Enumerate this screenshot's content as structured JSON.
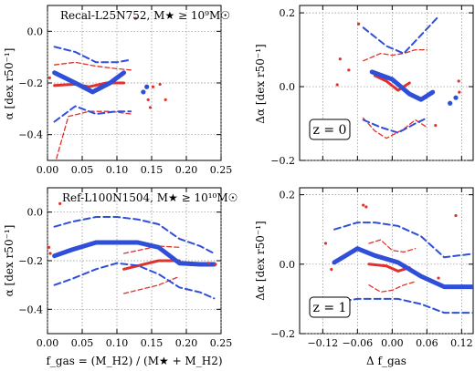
{
  "figure": {
    "colors": {
      "red": "#e0312c",
      "blue": "#2f4fd9",
      "grid": "#8c8c8c"
    },
    "xlabels": {
      "fgas": "f_gas = (M_H2) / (M★ + M_H2)",
      "dfgas": "Δ f_gas"
    },
    "ylabels": {
      "alpha": "α [dex r50⁻¹]",
      "dalpha": "Δα [dex r50⁻¹]"
    }
  },
  "chart_data": [
    {
      "id": "top-left",
      "type": "line",
      "label_text": "Recal-L25N752, M★ ≥ 10⁹M☉",
      "label_color": "red",
      "box_label": "",
      "xlim": [
        0.0,
        0.25
      ],
      "ylim": [
        -0.5,
        0.1
      ],
      "xticks": [
        0.0,
        0.05,
        0.1,
        0.15,
        0.2,
        0.25
      ],
      "xticklabels": [
        "0.00",
        "0.05",
        "0.10",
        "0.15",
        "0.20",
        "0.25"
      ],
      "yticks": [
        -0.4,
        -0.2,
        0.0
      ],
      "yticklabels": [
        "−0.4",
        "−0.2",
        "0.0"
      ],
      "show_xticklabels": true,
      "xlabel": "",
      "ylabel": "alpha",
      "series": [
        {
          "color": "red",
          "style": "thick",
          "x": [
            0.01,
            0.04,
            0.06,
            0.085,
            0.11
          ],
          "y": [
            -0.21,
            -0.205,
            -0.215,
            -0.2,
            -0.2
          ]
        },
        {
          "color": "red",
          "style": "dash",
          "x": [
            0.01,
            0.04,
            0.07,
            0.1,
            0.12
          ],
          "y": [
            -0.13,
            -0.12,
            -0.135,
            -0.145,
            -0.15
          ]
        },
        {
          "color": "red",
          "style": "dash",
          "x": [
            0.01,
            0.03,
            0.06,
            0.09,
            0.12
          ],
          "y": [
            -0.52,
            -0.33,
            -0.31,
            -0.31,
            -0.32
          ]
        },
        {
          "color": "blue",
          "style": "thick",
          "x": [
            0.01,
            0.04,
            0.065,
            0.09,
            0.11
          ],
          "y": [
            -0.16,
            -0.2,
            -0.235,
            -0.2,
            -0.16
          ]
        },
        {
          "color": "blue",
          "style": "dash",
          "x": [
            0.01,
            0.04,
            0.07,
            0.1,
            0.12
          ],
          "y": [
            -0.06,
            -0.08,
            -0.12,
            -0.12,
            -0.11
          ]
        },
        {
          "color": "blue",
          "style": "dash",
          "x": [
            0.01,
            0.04,
            0.07,
            0.1,
            0.12
          ],
          "y": [
            -0.35,
            -0.29,
            -0.32,
            -0.31,
            -0.31
          ]
        }
      ],
      "points": [
        {
          "color": "red",
          "x": 0.003,
          "y": -0.18
        },
        {
          "color": "red",
          "x": 0.127,
          "y": 0.05
        },
        {
          "color": "red",
          "x": 0.152,
          "y": -0.215
        },
        {
          "color": "red",
          "x": 0.145,
          "y": -0.265
        },
        {
          "color": "red",
          "x": 0.148,
          "y": -0.295
        },
        {
          "color": "red",
          "x": 0.162,
          "y": -0.205
        },
        {
          "color": "red",
          "x": 0.17,
          "y": -0.265
        },
        {
          "color": "blue",
          "x": 0.143,
          "y": -0.215
        },
        {
          "color": "blue",
          "x": 0.138,
          "y": -0.235
        }
      ]
    },
    {
      "id": "top-right",
      "type": "line",
      "label_text": "",
      "label_color": "red",
      "box_label": "z = 0",
      "xlim": [
        -0.16,
        0.14
      ],
      "ylim": [
        -0.2,
        0.22
      ],
      "xticks": [
        -0.12,
        -0.06,
        0.0,
        0.06,
        0.12
      ],
      "xticklabels": [
        "−0.12",
        "−0.06",
        "0.00",
        "0.06",
        "0.12"
      ],
      "yticks": [
        -0.2,
        0.0,
        0.2
      ],
      "yticklabels": [
        "−0.2",
        "0.0",
        "0.2"
      ],
      "show_xticklabels": false,
      "xlabel": "",
      "ylabel": "dalpha",
      "series": [
        {
          "color": "red",
          "style": "thick",
          "x": [
            -0.03,
            -0.01,
            0.01,
            0.03
          ],
          "y": [
            0.03,
            0.015,
            -0.01,
            0.01
          ]
        },
        {
          "color": "red",
          "style": "dash",
          "x": [
            -0.05,
            -0.02,
            0.0,
            0.02,
            0.04,
            0.06
          ],
          "y": [
            0.07,
            0.09,
            0.085,
            0.09,
            0.1,
            0.1
          ]
        },
        {
          "color": "red",
          "style": "dash",
          "x": [
            -0.05,
            -0.03,
            -0.01,
            0.02,
            0.04,
            0.06
          ],
          "y": [
            -0.085,
            -0.12,
            -0.14,
            -0.115,
            -0.09,
            -0.11
          ]
        },
        {
          "color": "blue",
          "style": "thick",
          "x": [
            -0.035,
            0.0,
            0.03,
            0.05,
            0.07
          ],
          "y": [
            0.04,
            0.02,
            -0.02,
            -0.035,
            -0.015
          ]
        },
        {
          "color": "blue",
          "style": "dash",
          "x": [
            -0.05,
            -0.01,
            0.02,
            0.05,
            0.08
          ],
          "y": [
            0.16,
            0.11,
            0.09,
            0.14,
            0.19
          ]
        },
        {
          "color": "blue",
          "style": "dash",
          "x": [
            -0.05,
            -0.02,
            0.01,
            0.04,
            0.06
          ],
          "y": [
            -0.09,
            -0.11,
            -0.125,
            -0.1,
            -0.085
          ]
        }
      ],
      "points": [
        {
          "color": "red",
          "x": -0.058,
          "y": 0.17
        },
        {
          "color": "red",
          "x": -0.075,
          "y": 0.045
        },
        {
          "color": "red",
          "x": -0.09,
          "y": 0.075
        },
        {
          "color": "red",
          "x": -0.095,
          "y": 0.005
        },
        {
          "color": "red",
          "x": 0.075,
          "y": -0.105
        },
        {
          "color": "red",
          "x": 0.115,
          "y": 0.015
        },
        {
          "color": "red",
          "x": 0.116,
          "y": -0.015
        },
        {
          "color": "blue",
          "x": 0.1,
          "y": -0.045
        },
        {
          "color": "blue",
          "x": 0.11,
          "y": -0.03
        }
      ]
    },
    {
      "id": "bottom-left",
      "type": "line",
      "label_text": "Ref-L100N1504, M★ ≥ 10¹⁰M☉",
      "label_color": "blue",
      "box_label": "",
      "xlim": [
        0.0,
        0.25
      ],
      "ylim": [
        -0.5,
        0.1
      ],
      "xticks": [
        0.0,
        0.05,
        0.1,
        0.15,
        0.2,
        0.25
      ],
      "xticklabels": [
        "0.00",
        "0.05",
        "0.10",
        "0.15",
        "0.20",
        "0.25"
      ],
      "yticks": [
        -0.4,
        -0.2,
        0.0
      ],
      "yticklabels": [
        "−0.4",
        "−0.2",
        "0.0"
      ],
      "show_xticklabels": true,
      "xlabel": "fgas",
      "ylabel": "alpha",
      "series": [
        {
          "color": "red",
          "style": "thick",
          "x": [
            0.11,
            0.16,
            0.19
          ],
          "y": [
            -0.235,
            -0.2,
            -0.2
          ]
        },
        {
          "color": "red",
          "style": "dash",
          "x": [
            0.11,
            0.16,
            0.19
          ],
          "y": [
            -0.17,
            -0.14,
            -0.145
          ]
        },
        {
          "color": "red",
          "style": "dash",
          "x": [
            0.11,
            0.16,
            0.19
          ],
          "y": [
            -0.335,
            -0.3,
            -0.265
          ]
        },
        {
          "color": "blue",
          "style": "thick",
          "x": [
            0.01,
            0.035,
            0.07,
            0.1,
            0.13,
            0.16,
            0.19,
            0.22,
            0.24
          ],
          "y": [
            -0.18,
            -0.155,
            -0.125,
            -0.125,
            -0.125,
            -0.145,
            -0.21,
            -0.215,
            -0.215
          ]
        },
        {
          "color": "blue",
          "style": "dash",
          "x": [
            0.01,
            0.035,
            0.07,
            0.1,
            0.13,
            0.16,
            0.19,
            0.22,
            0.24
          ],
          "y": [
            -0.06,
            -0.04,
            -0.02,
            -0.02,
            -0.03,
            -0.05,
            -0.11,
            -0.14,
            -0.17
          ]
        },
        {
          "color": "blue",
          "style": "dash",
          "x": [
            0.01,
            0.035,
            0.07,
            0.1,
            0.13,
            0.16,
            0.19,
            0.22,
            0.24
          ],
          "y": [
            -0.3,
            -0.275,
            -0.235,
            -0.21,
            -0.22,
            -0.255,
            -0.31,
            -0.33,
            -0.355
          ]
        }
      ],
      "points": [
        {
          "color": "red",
          "x": 0.018,
          "y": 0.035
        },
        {
          "color": "red",
          "x": 0.002,
          "y": -0.145
        },
        {
          "color": "red",
          "x": 0.004,
          "y": -0.17
        },
        {
          "color": "red",
          "x": 0.232,
          "y": -0.21
        },
        {
          "color": "red",
          "x": 0.242,
          "y": -0.215
        }
      ]
    },
    {
      "id": "bottom-right",
      "type": "line",
      "label_text": "",
      "label_color": "red",
      "box_label": "z = 1",
      "xlim": [
        -0.16,
        0.14
      ],
      "ylim": [
        -0.2,
        0.22
      ],
      "xticks": [
        -0.12,
        -0.06,
        0.0,
        0.06,
        0.12
      ],
      "xticklabels": [
        "−0.12",
        "−0.06",
        "0.00",
        "0.06",
        "0.12"
      ],
      "yticks": [
        -0.2,
        0.0,
        0.2
      ],
      "yticklabels": [
        "−0.2",
        "0.0",
        "0.2"
      ],
      "show_xticklabels": true,
      "xlabel": "dfgas",
      "ylabel": "dalpha",
      "series": [
        {
          "color": "red",
          "style": "thick",
          "x": [
            -0.04,
            -0.01,
            0.01,
            0.03
          ],
          "y": [
            0.0,
            -0.005,
            -0.02,
            -0.01
          ]
        },
        {
          "color": "red",
          "style": "dash",
          "x": [
            -0.04,
            -0.02,
            0.0,
            0.02,
            0.04
          ],
          "y": [
            0.06,
            0.07,
            0.04,
            0.035,
            0.045
          ]
        },
        {
          "color": "red",
          "style": "dash",
          "x": [
            -0.04,
            -0.02,
            0.0,
            0.02,
            0.04
          ],
          "y": [
            -0.06,
            -0.08,
            -0.075,
            -0.06,
            -0.05
          ]
        },
        {
          "color": "blue",
          "style": "thick",
          "x": [
            -0.1,
            -0.06,
            -0.03,
            0.01,
            0.05,
            0.09,
            0.14
          ],
          "y": [
            0.005,
            0.045,
            0.025,
            0.005,
            -0.035,
            -0.065,
            -0.065
          ]
        },
        {
          "color": "blue",
          "style": "dash",
          "x": [
            -0.1,
            -0.06,
            -0.03,
            0.01,
            0.05,
            0.09,
            0.14
          ],
          "y": [
            0.1,
            0.12,
            0.12,
            0.11,
            0.08,
            0.02,
            0.03
          ]
        },
        {
          "color": "blue",
          "style": "dash",
          "x": [
            -0.1,
            -0.06,
            -0.03,
            0.01,
            0.05,
            0.09,
            0.14
          ],
          "y": [
            -0.11,
            -0.1,
            -0.1,
            -0.1,
            -0.115,
            -0.14,
            -0.14
          ]
        }
      ],
      "points": [
        {
          "color": "red",
          "x": -0.05,
          "y": 0.17
        },
        {
          "color": "red",
          "x": -0.045,
          "y": 0.165
        },
        {
          "color": "red",
          "x": -0.115,
          "y": 0.06
        },
        {
          "color": "red",
          "x": -0.105,
          "y": -0.015
        },
        {
          "color": "red",
          "x": 0.11,
          "y": 0.14
        },
        {
          "color": "red",
          "x": 0.08,
          "y": -0.04
        }
      ]
    }
  ]
}
